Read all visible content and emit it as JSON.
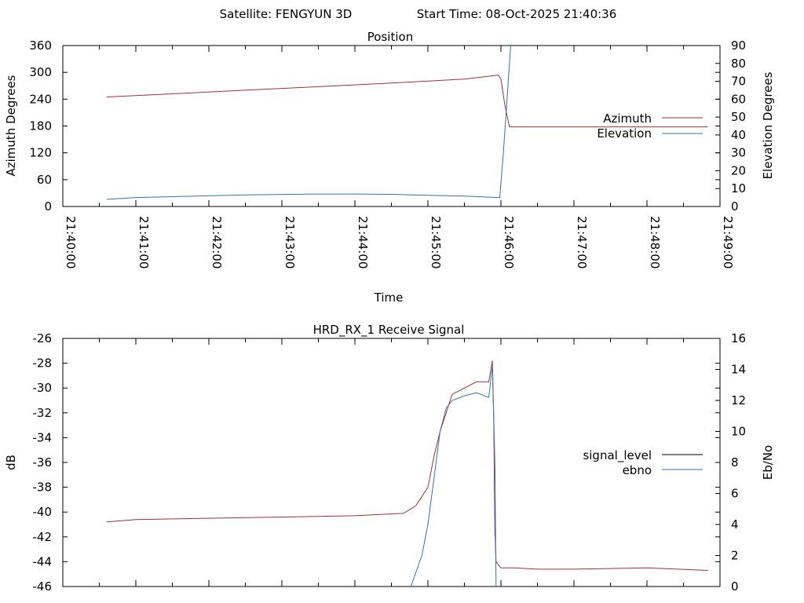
{
  "header": {
    "satellite_label": "Satellite: FENGYUN 3D",
    "start_time_label": "Start Time: 08-Oct-2025 21:40:36"
  },
  "chart_data": [
    {
      "type": "line",
      "title": "Position",
      "xlabel": "Time",
      "ylabel": "Azimuth Degrees",
      "y2label": "Elevation Degrees",
      "xlim": [
        "21:40:00",
        "21:49:00"
      ],
      "ylim": [
        0,
        360
      ],
      "y2lim": [
        0,
        90
      ],
      "x_ticks": [
        "21:40:00",
        "21:41:00",
        "21:42:00",
        "21:43:00",
        "21:44:00",
        "21:45:00",
        "21:46:00",
        "21:47:00",
        "21:48:00",
        "21:49:00"
      ],
      "y_ticks": [
        0,
        60,
        120,
        180,
        240,
        300,
        360
      ],
      "y2_ticks": [
        0,
        10,
        20,
        30,
        40,
        50,
        60,
        70,
        80,
        90
      ],
      "legend_position": "right",
      "grid": false,
      "series": [
        {
          "name": "Azimuth",
          "axis": "y",
          "color": "#a0303a",
          "x": [
            "21:40:36",
            "21:41:30",
            "21:42:30",
            "21:43:30",
            "21:44:30",
            "21:45:30",
            "21:45:58",
            "21:46:00",
            "21:46:03",
            "21:46:07",
            "21:47:00",
            "21:48:00",
            "21:48:50"
          ],
          "y": [
            245,
            252,
            260,
            268,
            276,
            285,
            294,
            285,
            230,
            178,
            178,
            178,
            178
          ]
        },
        {
          "name": "Elevation",
          "axis": "y2",
          "color": "#3a6fb0",
          "x": [
            "21:40:36",
            "21:41:00",
            "21:41:30",
            "21:42:30",
            "21:43:30",
            "21:44:00",
            "21:44:30",
            "21:45:00",
            "21:45:30",
            "21:45:59",
            "21:46:02",
            "21:46:05",
            "21:46:08"
          ],
          "y": [
            4,
            5,
            5.5,
            6.5,
            7,
            7,
            6.8,
            6.3,
            5.8,
            5,
            30,
            60,
            90
          ]
        }
      ]
    },
    {
      "type": "line",
      "title": "HRD_RX_1 Receive Signal",
      "xlabel": "",
      "ylabel": "dB",
      "y2label": "Eb/No",
      "xlim": [
        "21:40:00",
        "21:49:00"
      ],
      "ylim": [
        -46,
        -26
      ],
      "y2lim": [
        0,
        16
      ],
      "y_ticks": [
        -46,
        -44,
        -42,
        -40,
        -38,
        -36,
        -34,
        -32,
        -30,
        -28,
        -26
      ],
      "y2_ticks": [
        0,
        2,
        4,
        6,
        8,
        10,
        12,
        14,
        16
      ],
      "legend_position": "right",
      "grid": false,
      "series": [
        {
          "name": "signal_level",
          "axis": "y",
          "color": "#a0303a",
          "x": [
            "21:40:36",
            "21:41:00",
            "21:42:00",
            "21:43:00",
            "21:44:00",
            "21:44:40",
            "21:44:50",
            "21:45:00",
            "21:45:05",
            "21:45:10",
            "21:45:20",
            "21:45:30",
            "21:45:40",
            "21:45:50",
            "21:45:53",
            "21:45:54",
            "21:45:55",
            "21:45:56",
            "21:46:00",
            "21:46:10",
            "21:46:30",
            "21:47:00",
            "21:48:00",
            "21:48:50"
          ],
          "y": [
            -40.8,
            -40.6,
            -40.5,
            -40.4,
            -40.3,
            -40.1,
            -39.5,
            -38.0,
            -35.5,
            -33.5,
            -30.5,
            -30.0,
            -29.5,
            -29.5,
            -27.8,
            -32.0,
            -41.5,
            -44.0,
            -44.5,
            -44.5,
            -44.6,
            -44.6,
            -44.5,
            -44.7
          ]
        },
        {
          "name": "ebno",
          "axis": "y2",
          "color": "#3a6fb0",
          "x": [
            "21:44:46",
            "21:44:55",
            "21:45:00",
            "21:45:05",
            "21:45:10",
            "21:45:15",
            "21:45:20",
            "21:45:30",
            "21:45:40",
            "21:45:50",
            "21:45:53",
            "21:45:55",
            "21:45:56"
          ],
          "y": [
            0,
            2,
            4,
            7,
            10,
            11.5,
            12,
            12.3,
            12.5,
            12.2,
            14.2,
            8,
            0
          ]
        }
      ]
    }
  ]
}
